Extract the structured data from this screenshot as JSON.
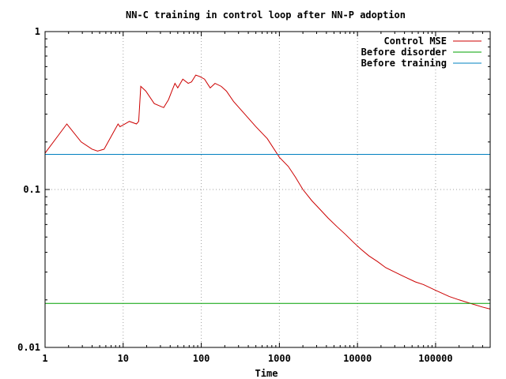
{
  "chart_data": {
    "type": "line",
    "title": "NN-C training in control loop after NN-P adoption",
    "xlabel": "Time",
    "ylabel": "",
    "x_scale": "log",
    "y_scale": "log",
    "xlim": [
      1,
      500000
    ],
    "ylim": [
      0.01,
      1
    ],
    "grid": true,
    "legend_position": "top-right",
    "x_ticks": [
      {
        "value": 1,
        "label": "1"
      },
      {
        "value": 10,
        "label": "10"
      },
      {
        "value": 100,
        "label": "100"
      },
      {
        "value": 1000,
        "label": "1000"
      },
      {
        "value": 10000,
        "label": "10000"
      },
      {
        "value": 100000,
        "label": "100000"
      }
    ],
    "y_ticks": [
      {
        "value": 1,
        "label": "1"
      },
      {
        "value": 0.1,
        "label": "0.1"
      },
      {
        "value": 0.01,
        "label": "0.01"
      }
    ],
    "series": [
      {
        "name": "Control MSE",
        "color": "#cc0000",
        "x": [
          1,
          1.9,
          2.9,
          4,
          4.7,
          5.7,
          7.5,
          8.6,
          9.1,
          10.5,
          12,
          14.8,
          15.8,
          16.8,
          19.5,
          25,
          33,
          38,
          42,
          46,
          50,
          58,
          68,
          75,
          85,
          95,
          110,
          130,
          150,
          180,
          210,
          260,
          340,
          500,
          700,
          1000,
          1300,
          1600,
          2000,
          2600,
          3300,
          4200,
          5500,
          7000,
          9000,
          11000,
          14000,
          18000,
          23000,
          30000,
          40000,
          55000,
          70000,
          100000,
          150000,
          200000,
          280000,
          400000,
          500000
        ],
        "y": [
          0.17,
          0.26,
          0.2,
          0.18,
          0.175,
          0.18,
          0.23,
          0.26,
          0.25,
          0.26,
          0.27,
          0.26,
          0.27,
          0.45,
          0.42,
          0.35,
          0.33,
          0.37,
          0.42,
          0.47,
          0.44,
          0.5,
          0.47,
          0.48,
          0.53,
          0.52,
          0.5,
          0.44,
          0.47,
          0.45,
          0.42,
          0.36,
          0.31,
          0.25,
          0.21,
          0.16,
          0.14,
          0.12,
          0.1,
          0.085,
          0.075,
          0.066,
          0.058,
          0.052,
          0.046,
          0.042,
          0.038,
          0.035,
          0.032,
          0.03,
          0.028,
          0.026,
          0.025,
          0.023,
          0.021,
          0.02,
          0.019,
          0.018,
          0.0175
        ]
      },
      {
        "name": "Before disorder",
        "color": "#00a000",
        "x": [
          1,
          500000
        ],
        "y": [
          0.019,
          0.019
        ]
      },
      {
        "name": "Before training",
        "color": "#0080c0",
        "x": [
          1,
          500000
        ],
        "y": [
          0.167,
          0.167
        ]
      }
    ]
  }
}
